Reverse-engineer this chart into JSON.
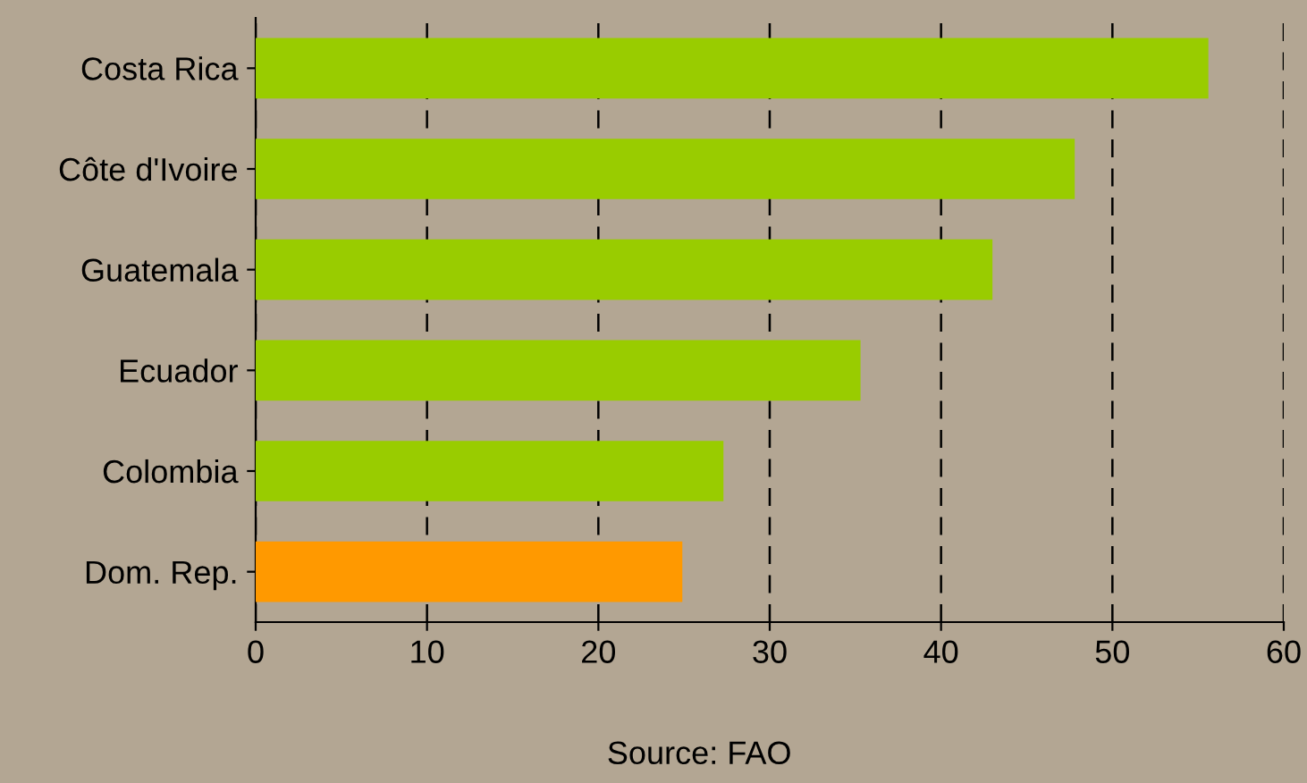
{
  "chart_data": {
    "type": "bar",
    "orientation": "horizontal",
    "categories": [
      "Costa Rica",
      "Côte d'Ivoire",
      "Guatemala",
      "Ecuador",
      "Colombia",
      "Dom. Rep."
    ],
    "values": [
      55.6,
      47.8,
      43.0,
      35.3,
      27.3,
      24.9
    ],
    "colors": [
      "#99cc00",
      "#99cc00",
      "#99cc00",
      "#99cc00",
      "#99cc00",
      "#ff9900"
    ],
    "xlim": [
      0,
      60
    ],
    "xticks": [
      0,
      10,
      20,
      30,
      40,
      50,
      60
    ],
    "grid": "x",
    "line_style": "dashed",
    "annotations": [
      "Source: FAO"
    ]
  }
}
